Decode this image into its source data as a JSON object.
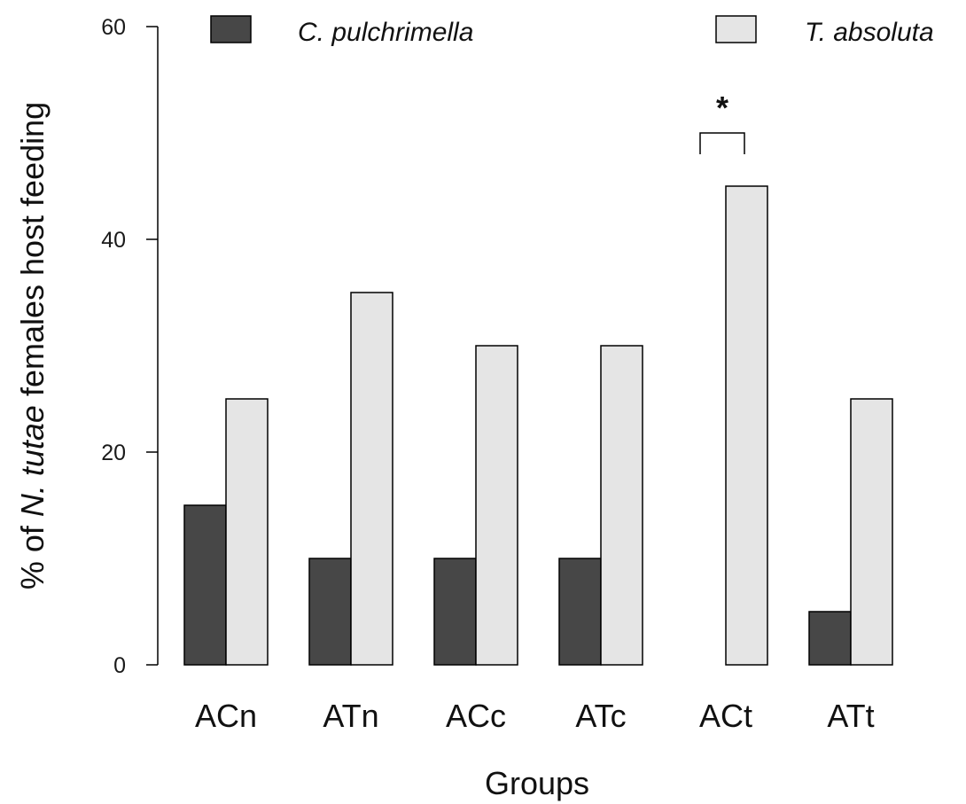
{
  "chart_data": {
    "type": "bar",
    "categories": [
      "ACn",
      "ATn",
      "ACc",
      "ATc",
      "ACt",
      "ATt"
    ],
    "series": [
      {
        "name": "C. pulchrimella",
        "color": "#474747",
        "values": [
          15,
          10,
          10,
          10,
          0,
          5
        ]
      },
      {
        "name": "T. absoluta",
        "color": "#e5e5e5",
        "values": [
          25,
          35,
          30,
          30,
          45,
          25
        ]
      }
    ],
    "xlabel": "Groups",
    "ylabel": {
      "prefix": "% of ",
      "italic": "N. tutae",
      "suffix": " females host feeding"
    },
    "ylim": [
      0,
      60
    ],
    "yticks": [
      0,
      20,
      40,
      60
    ],
    "grid": false,
    "legend_position": "top",
    "annotations": [
      {
        "text": "*",
        "category": "ACt",
        "type": "significance-bracket"
      }
    ]
  }
}
